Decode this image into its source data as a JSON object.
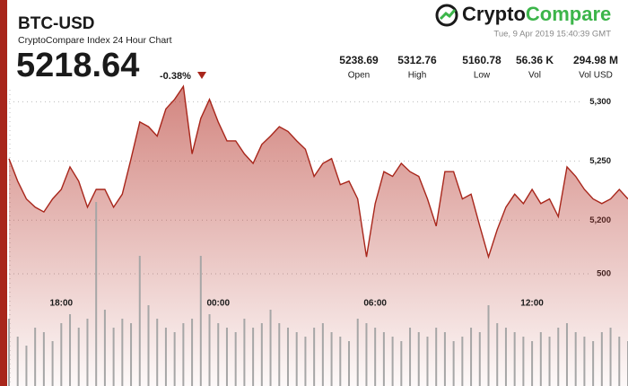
{
  "chart_data": {
    "type": "area",
    "title": "BTC-USD",
    "subtitle": "CryptoCompare Index 24 Hour Chart",
    "price": 5218.64,
    "change": "-0.38%",
    "timestamp": "Tue, 9 Apr 2019 15:40:39 GMT",
    "logo": [
      "Crypto",
      "Compare"
    ],
    "stats": [
      {
        "value": 5238.69,
        "label": "Open"
      },
      {
        "value": 5312.76,
        "label": "High"
      },
      {
        "value": 5160.78,
        "label": "Low"
      },
      {
        "value": "56.36 K",
        "label": "Vol"
      },
      {
        "value": "294.98 M",
        "label": "Vol USD"
      }
    ],
    "categories": [
      null,
      null,
      null,
      null,
      null,
      null,
      "18:00",
      null,
      null,
      null,
      null,
      null,
      null,
      null,
      null,
      null,
      null,
      null,
      null,
      null,
      null,
      null,
      null,
      null,
      "00:00",
      null,
      null,
      null,
      null,
      null,
      null,
      null,
      null,
      null,
      null,
      null,
      null,
      null,
      null,
      null,
      null,
      null,
      "06:00",
      null,
      null,
      null,
      null,
      null,
      null,
      null,
      null,
      null,
      null,
      null,
      null,
      null,
      null,
      null,
      null,
      null,
      "12:00",
      null,
      null,
      null,
      null,
      null,
      null,
      null,
      null,
      null,
      null,
      null
    ],
    "series": [
      {
        "name": "Price",
        "color": "#a8261b",
        "values": [
          5252,
          5233,
          5218,
          5211,
          5207,
          5218,
          5226,
          5245,
          5233,
          5211,
          5226,
          5226,
          5211,
          5222,
          5252,
          5283,
          5279,
          5271,
          5294,
          5302,
          5313,
          5256,
          5286,
          5302,
          5283,
          5267,
          5267,
          5256,
          5248,
          5264,
          5271,
          5279,
          5275,
          5267,
          5260,
          5237,
          5248,
          5252,
          5230,
          5233,
          5218,
          5169,
          5214,
          5241,
          5237,
          5248,
          5241,
          5237,
          5218,
          5195,
          5241,
          5241,
          5218,
          5222,
          5195,
          5169,
          5192,
          5211,
          5222,
          5214,
          5226,
          5214,
          5218,
          5203,
          5245,
          5237,
          5226,
          5218,
          5214,
          5218,
          5226,
          5218
        ]
      },
      {
        "name": "Volume",
        "color": "#a6a6a6",
        "axis": "y2",
        "values": [
          300,
          220,
          180,
          260,
          240,
          200,
          280,
          320,
          260,
          300,
          820,
          340,
          260,
          300,
          280,
          580,
          360,
          300,
          260,
          240,
          280,
          300,
          580,
          320,
          280,
          260,
          240,
          300,
          260,
          280,
          340,
          280,
          260,
          240,
          220,
          260,
          280,
          240,
          220,
          200,
          300,
          280,
          260,
          240,
          220,
          200,
          260,
          240,
          220,
          260,
          240,
          200,
          220,
          260,
          240,
          360,
          280,
          260,
          240,
          220,
          200,
          240,
          220,
          260,
          280,
          240,
          220,
          200,
          240,
          260,
          220,
          200
        ]
      }
    ],
    "ylim": [
      5060,
      5320
    ],
    "yticks": [
      {
        "value": 5200,
        "label": "5,200"
      },
      {
        "value": 5250,
        "label": "5,250"
      },
      {
        "value": 5300,
        "label": "5,300"
      }
    ],
    "y2lim": [
      0,
      860
    ],
    "y2ticks": [
      500
    ],
    "grid": true
  }
}
